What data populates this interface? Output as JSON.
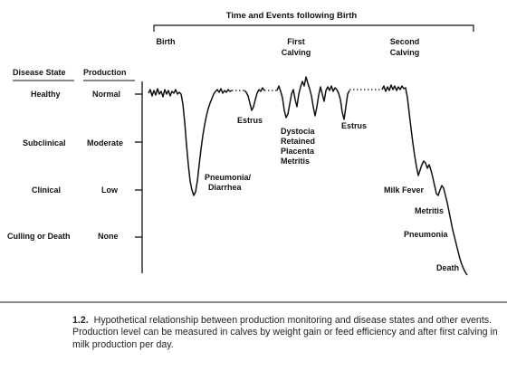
{
  "figure": {
    "title": "Time and Events following Birth",
    "column_headers": {
      "disease_state": "Disease State",
      "production": "Production"
    },
    "milestones": [
      "Birth",
      "First Calving",
      "Second Calving"
    ],
    "levels": [
      {
        "disease_state": "Healthy",
        "production": "Normal"
      },
      {
        "disease_state": "Subclinical",
        "production": "Moderate"
      },
      {
        "disease_state": "Clinical",
        "production": "Low"
      },
      {
        "disease_state": "Culling or Death",
        "production": "None"
      }
    ],
    "events": [
      "Pneumonia/ Diarrhea",
      "Estrus",
      "Dystocia Retained Placenta Metritis",
      "Estrus",
      "Milk Fever",
      "Metritis",
      "Pneumonia",
      "Death"
    ]
  },
  "caption": {
    "number": "1.2.",
    "text": "Hypothetical relationship between production monitoring and disease states and other events. Production level can be measured in calves by weight gain or feed efficiency and after first calving in milk production per day."
  }
}
